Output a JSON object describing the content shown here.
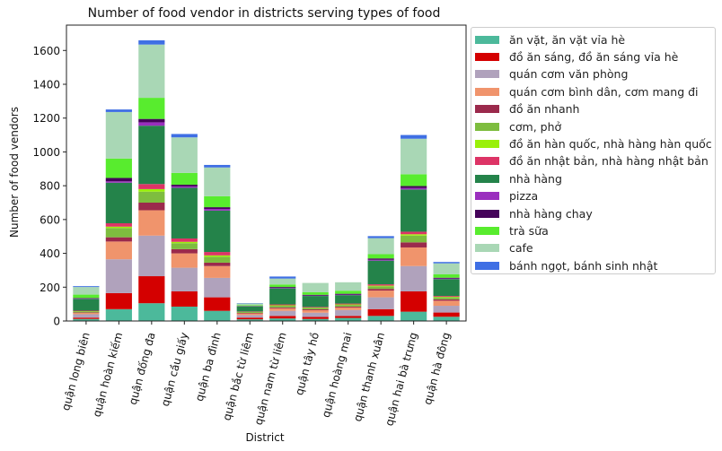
{
  "chart_data": {
    "type": "bar",
    "stacked": true,
    "title": "Number of food vendor in districts serving types of food",
    "xlabel": "District",
    "ylabel": "Number of food vendors",
    "ylim": [
      0,
      1750
    ],
    "yticks": [
      0,
      200,
      400,
      600,
      800,
      1000,
      1200,
      1400,
      1600
    ],
    "legend_position": "right-outside",
    "categories": [
      "quận long biên",
      "quận hoàn kiếm",
      "quận đống đa",
      "quận cầu giấy",
      "quận ba đình",
      "quận bắc từ liêm",
      "quận nam từ liêm",
      "quận tây hồ",
      "quận hoàng mai",
      "quận thanh xuân",
      "quận hai bà trưng",
      "quận hà đông"
    ],
    "series": [
      {
        "name": "ăn vặt, ăn vặt vỉa hè",
        "color": "#4cb99b",
        "values": [
          12,
          70,
          105,
          85,
          60,
          10,
          15,
          12,
          18,
          30,
          55,
          25
        ]
      },
      {
        "name": "đồ ăn sáng, đồ ăn sáng vỉa hè",
        "color": "#d40000",
        "values": [
          8,
          95,
          160,
          90,
          80,
          10,
          15,
          12,
          12,
          40,
          120,
          25
        ]
      },
      {
        "name": "quán cơm văn phòng",
        "color": "#b0a2bc",
        "values": [
          20,
          200,
          240,
          140,
          115,
          15,
          30,
          25,
          35,
          70,
          150,
          40
        ]
      },
      {
        "name": "quán cơm bình dân, cơm mang đi",
        "color": "#f0946c",
        "values": [
          8,
          105,
          150,
          85,
          70,
          10,
          15,
          15,
          15,
          40,
          110,
          30
        ]
      },
      {
        "name": "đồ ăn nhanh",
        "color": "#9b2a4c",
        "values": [
          3,
          25,
          45,
          25,
          20,
          3,
          5,
          5,
          5,
          10,
          30,
          8
        ]
      },
      {
        "name": "cơm, phở",
        "color": "#7ebd3f",
        "values": [
          5,
          55,
          65,
          35,
          35,
          5,
          10,
          8,
          10,
          15,
          40,
          12
        ]
      },
      {
        "name": "đồ ăn hàn quốc, nhà hàng hàn quốc",
        "color": "#9af00a",
        "values": [
          2,
          8,
          15,
          8,
          8,
          1,
          3,
          2,
          3,
          4,
          8,
          3
        ]
      },
      {
        "name": "đồ ăn nhật bản, nhà hàng nhật bản",
        "color": "#dd3466",
        "values": [
          3,
          20,
          30,
          20,
          20,
          2,
          5,
          4,
          5,
          8,
          15,
          5
        ]
      },
      {
        "name": "nhà hàng",
        "color": "#24834a",
        "values": [
          70,
          240,
          345,
          300,
          245,
          30,
          95,
          65,
          50,
          140,
          250,
          100
        ]
      },
      {
        "name": "pizza",
        "color": "#9a2fbe",
        "values": [
          2,
          8,
          20,
          8,
          10,
          1,
          3,
          2,
          3,
          5,
          8,
          3
        ]
      },
      {
        "name": "nhà hàng chay",
        "color": "#45035a",
        "values": [
          3,
          20,
          20,
          10,
          10,
          2,
          5,
          5,
          5,
          8,
          12,
          5
        ]
      },
      {
        "name": "trà sữa",
        "color": "#58ec2e",
        "values": [
          20,
          115,
          125,
          70,
          65,
          5,
          15,
          15,
          18,
          25,
          70,
          20
        ]
      },
      {
        "name": "cafe",
        "color": "#a9d7b5",
        "values": [
          45,
          275,
          315,
          210,
          170,
          10,
          35,
          55,
          50,
          95,
          210,
          65
        ]
      },
      {
        "name": "bánh ngọt, bánh sinh nhật",
        "color": "#3f6fe4",
        "values": [
          5,
          15,
          25,
          20,
          15,
          2,
          12,
          0,
          0,
          12,
          22,
          8
        ]
      }
    ]
  }
}
